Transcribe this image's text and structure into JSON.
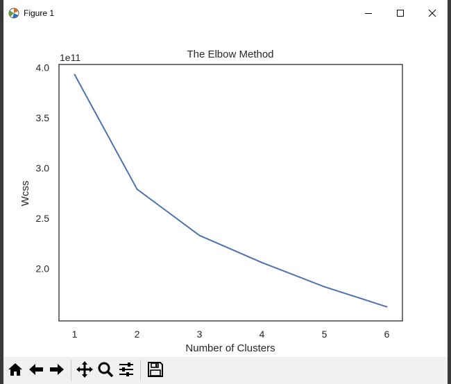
{
  "window": {
    "title": "Figure 1",
    "minimize_icon": "minimize-icon",
    "maximize_icon": "maximize-icon",
    "close_icon": "close-icon"
  },
  "toolbar": {
    "buttons": [
      {
        "name": "home-button",
        "icon": "home-icon"
      },
      {
        "name": "back-button",
        "icon": "arrow-left-icon"
      },
      {
        "name": "forward-button",
        "icon": "arrow-right-icon"
      },
      {
        "name": "pan-button",
        "icon": "move-icon"
      },
      {
        "name": "zoom-button",
        "icon": "magnifier-icon"
      },
      {
        "name": "configure-subplots-button",
        "icon": "sliders-icon"
      },
      {
        "name": "save-button",
        "icon": "floppy-disk-icon"
      }
    ]
  },
  "chart_data": {
    "type": "line",
    "title": "The Elbow Method",
    "xlabel": "Number of Clusters",
    "ylabel": "Wcss",
    "scale_label": "1e11",
    "x": [
      1,
      2,
      3,
      4,
      5,
      6
    ],
    "xticks": [
      1,
      2,
      3,
      4,
      5,
      6
    ],
    "yticks": [
      2.0,
      2.5,
      3.0,
      3.5,
      4.0
    ],
    "ytick_labels": [
      "2.0",
      "2.5",
      "3.0",
      "3.5",
      "4.0"
    ],
    "series": [
      {
        "values": [
          3.93,
          2.79,
          2.33,
          2.06,
          1.82,
          1.62
        ],
        "color": "#4c72b0"
      }
    ],
    "xlim": [
      0.75,
      6.25
    ],
    "ylim": [
      1.48,
      4.03
    ],
    "grid": false
  }
}
